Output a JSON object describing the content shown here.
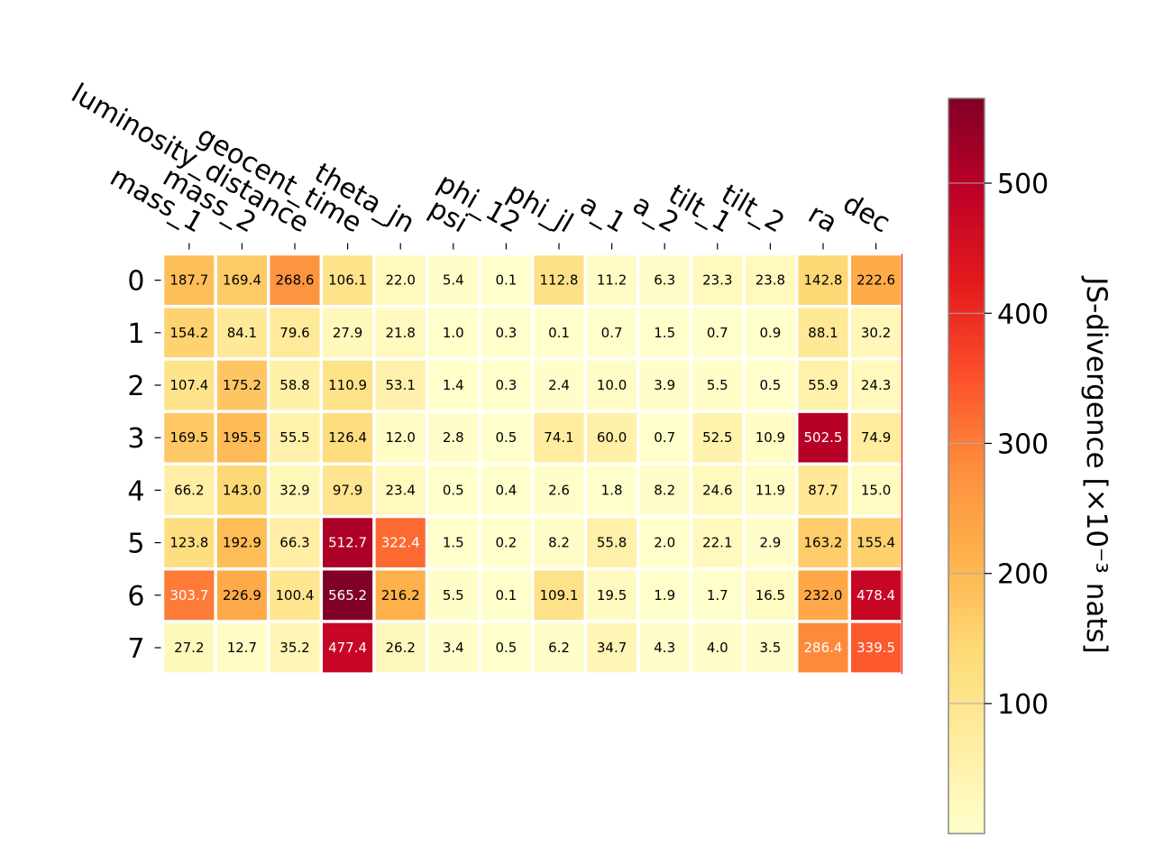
{
  "chart_data": {
    "type": "heatmap",
    "title": "",
    "x_labels": [
      "mass_1",
      "mass_2",
      "luminosity_distance",
      "geocent_time",
      "theta_jn",
      "psi",
      "phi_12",
      "phi_jl",
      "a_1",
      "a_2",
      "tilt_1",
      "tilt_2",
      "ra",
      "dec"
    ],
    "y_labels": [
      "0",
      "1",
      "2",
      "3",
      "4",
      "5",
      "6",
      "7"
    ],
    "values": [
      [
        187.7,
        169.4,
        268.6,
        106.1,
        22.0,
        5.4,
        0.1,
        112.8,
        11.2,
        6.3,
        23.3,
        23.8,
        142.8,
        222.6
      ],
      [
        154.2,
        84.1,
        79.6,
        27.9,
        21.8,
        1.0,
        0.3,
        0.1,
        0.7,
        1.5,
        0.7,
        0.9,
        88.1,
        30.2
      ],
      [
        107.4,
        175.2,
        58.8,
        110.9,
        53.1,
        1.4,
        0.3,
        2.4,
        10.0,
        3.9,
        5.5,
        0.5,
        55.9,
        24.3
      ],
      [
        169.5,
        195.5,
        55.5,
        126.4,
        12.0,
        2.8,
        0.5,
        74.1,
        60.0,
        0.7,
        52.5,
        10.9,
        502.5,
        74.9
      ],
      [
        66.2,
        143.0,
        32.9,
        97.9,
        23.4,
        0.5,
        0.4,
        2.6,
        1.8,
        8.2,
        24.6,
        11.9,
        87.7,
        15.0
      ],
      [
        123.8,
        192.9,
        66.3,
        512.7,
        322.4,
        1.5,
        0.2,
        8.2,
        55.8,
        2.0,
        22.1,
        2.9,
        163.2,
        155.4
      ],
      [
        303.7,
        226.9,
        100.4,
        565.2,
        216.2,
        5.5,
        0.1,
        109.1,
        19.5,
        1.9,
        1.7,
        16.5,
        232.0,
        478.4
      ],
      [
        27.2,
        12.7,
        35.2,
        477.4,
        26.2,
        3.4,
        0.5,
        6.2,
        34.7,
        4.3,
        4.0,
        3.5,
        286.4,
        339.5
      ]
    ],
    "colormap": "YlOrRd",
    "colorbar": {
      "label": "JS-divergence [×10⁻³ nats]",
      "ticks": [
        100,
        200,
        300,
        400,
        500
      ],
      "vmin": 0.1,
      "vmax": 565.2
    },
    "grid": false,
    "legend": "none"
  }
}
